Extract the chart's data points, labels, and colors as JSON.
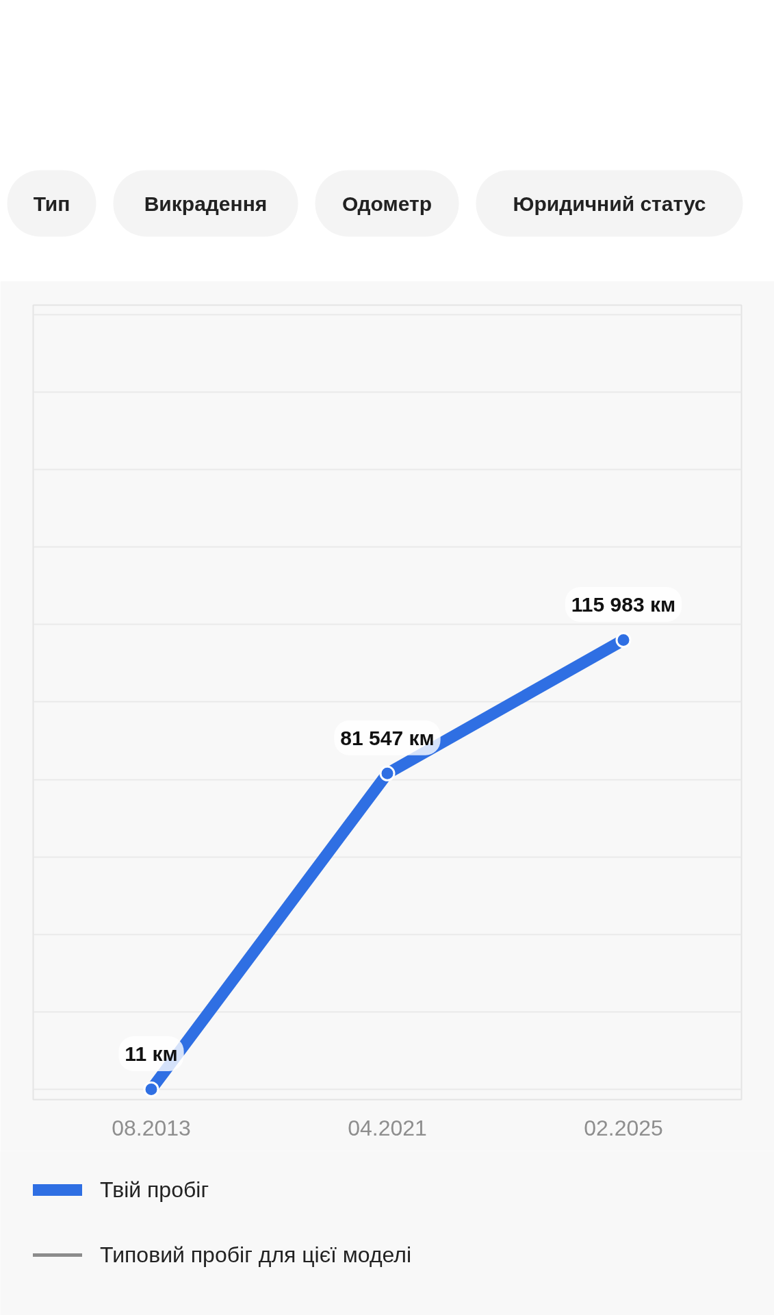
{
  "chart_data": {
    "type": "line",
    "categories": [
      "08.2013",
      "04.2021",
      "02.2025"
    ],
    "series": [
      {
        "name": "Твій пробіг",
        "color": "#2f6fe3",
        "values": [
          11,
          81547,
          115983
        ],
        "value_labels": [
          "11 км",
          "81 547 км",
          "115 983 км"
        ]
      },
      {
        "name": "Типовий пробіг для цієї моделі",
        "color": "#8c8c8c",
        "values": [
          null,
          null,
          null
        ]
      }
    ],
    "tick_labels": "x",
    "grid": "y",
    "legend": "bottom",
    "marker": "circle",
    "line_style": "solid",
    "annotations": [
      "Тип",
      "Викрадення",
      "Одометр",
      "Юридичний статус"
    ]
  }
}
